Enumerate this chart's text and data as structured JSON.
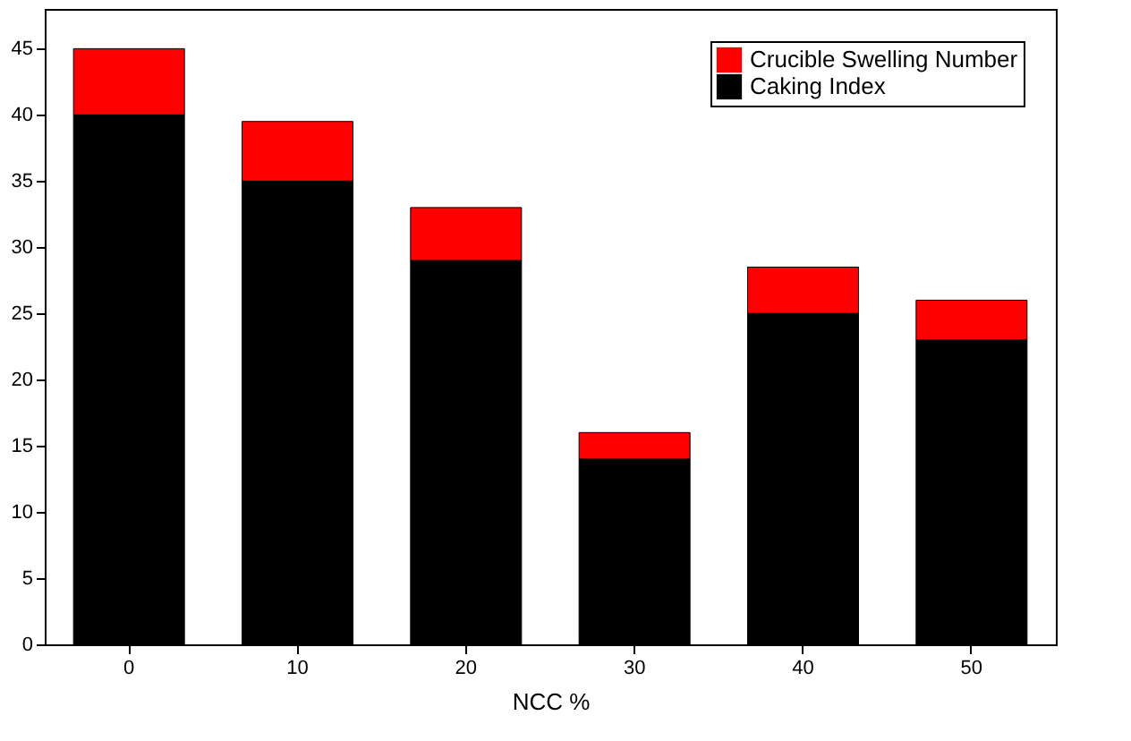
{
  "chart_data": {
    "type": "bar",
    "stacked": true,
    "xlabel": "NCC %",
    "categories": [
      "0",
      "10",
      "20",
      "30",
      "40",
      "50"
    ],
    "series": [
      {
        "name": "Caking Index",
        "color": "#000000",
        "values": [
          40,
          35,
          29,
          14,
          25,
          23
        ]
      },
      {
        "name": "Crucible Swelling Number",
        "color": "#ff0000",
        "values": [
          5,
          4.5,
          4,
          2,
          3.5,
          3
        ]
      }
    ],
    "ylim": [
      0,
      48
    ],
    "yticks": [
      0,
      5,
      10,
      15,
      20,
      25,
      30,
      35,
      40,
      45
    ],
    "grid": false,
    "legend": "top right"
  }
}
